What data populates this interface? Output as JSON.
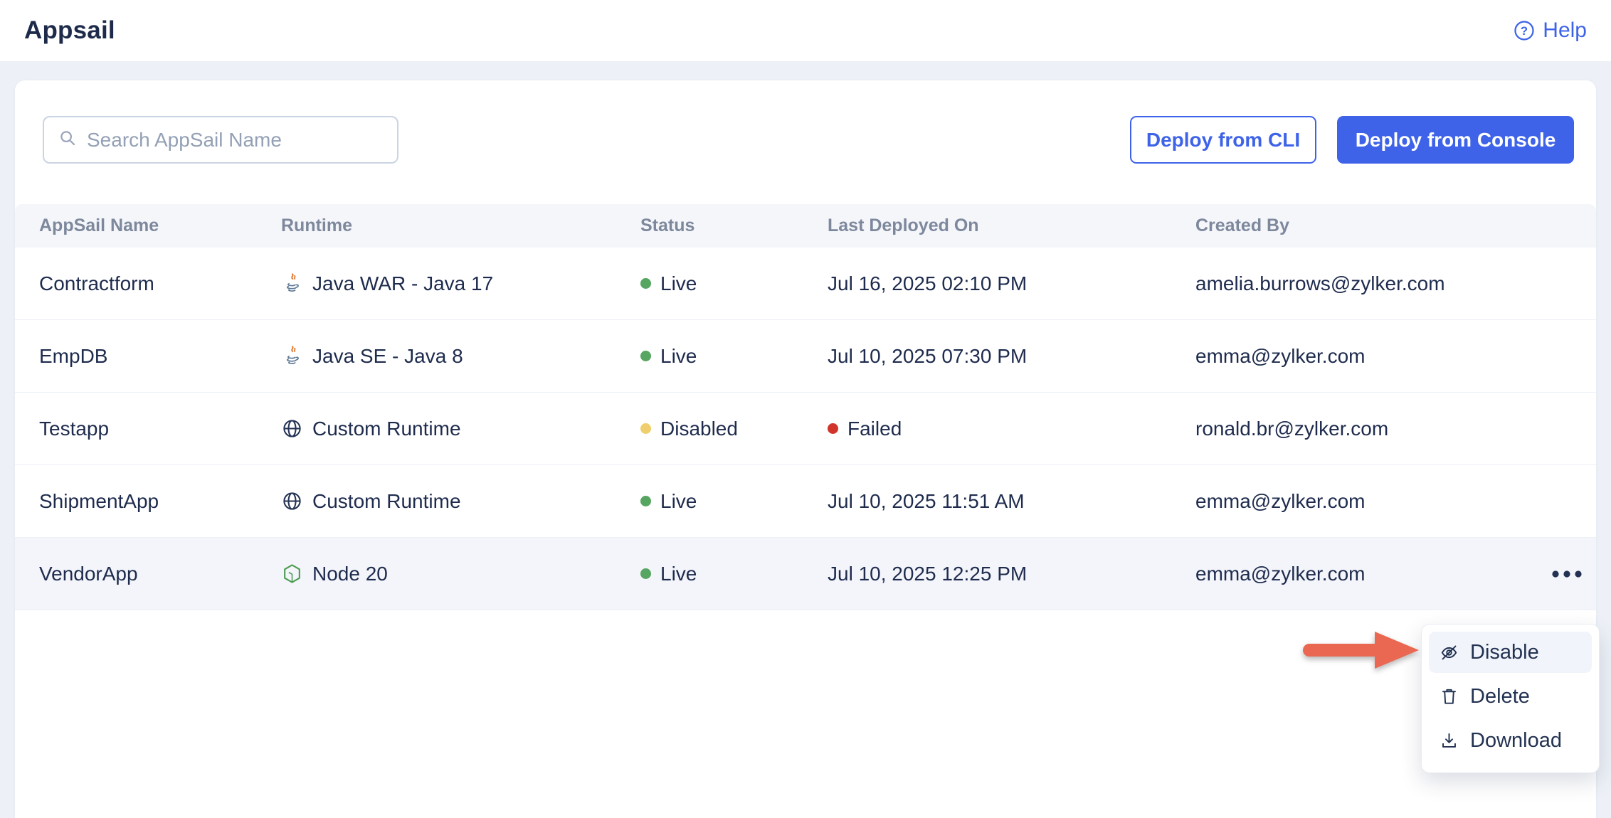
{
  "header": {
    "title": "Appsail",
    "help_label": "Help"
  },
  "toolbar": {
    "search_placeholder": "Search AppSail Name",
    "deploy_cli_label": "Deploy from CLI",
    "deploy_console_label": "Deploy from Console"
  },
  "table": {
    "columns": [
      "AppSail Name",
      "Runtime",
      "Status",
      "Last Deployed On",
      "Created By"
    ],
    "rows": [
      {
        "name": "Contractform",
        "runtime": {
          "icon": "java-icon",
          "label": "Java WAR - Java 17"
        },
        "status": {
          "label": "Live",
          "color": "#56A560"
        },
        "deployed": {
          "label": "Jul 16, 2025 02:10 PM",
          "dot": null
        },
        "created_by": "amelia.burrows@zylker.com",
        "highlighted": false,
        "show_more": false
      },
      {
        "name": "EmpDB",
        "runtime": {
          "icon": "java-icon",
          "label": "Java SE - Java 8"
        },
        "status": {
          "label": "Live",
          "color": "#56A560"
        },
        "deployed": {
          "label": "Jul 10, 2025 07:30 PM",
          "dot": null
        },
        "created_by": "emma@zylker.com",
        "highlighted": false,
        "show_more": false
      },
      {
        "name": "Testapp",
        "runtime": {
          "icon": "globe-icon",
          "label": "Custom Runtime"
        },
        "status": {
          "label": "Disabled",
          "color": "#F0CE6E"
        },
        "deployed": {
          "label": "Failed",
          "dot": "#D0342B"
        },
        "created_by": "ronald.br@zylker.com",
        "highlighted": false,
        "show_more": false
      },
      {
        "name": "ShipmentApp",
        "runtime": {
          "icon": "globe-icon",
          "label": "Custom Runtime"
        },
        "status": {
          "label": "Live",
          "color": "#56A560"
        },
        "deployed": {
          "label": "Jul 10, 2025 11:51 AM",
          "dot": null
        },
        "created_by": "emma@zylker.com",
        "highlighted": false,
        "show_more": false
      },
      {
        "name": "VendorApp",
        "runtime": {
          "icon": "node-icon",
          "label": "Node 20"
        },
        "status": {
          "label": "Live",
          "color": "#56A560"
        },
        "deployed": {
          "label": "Jul 10, 2025 12:25 PM",
          "dot": null
        },
        "created_by": "emma@zylker.com",
        "highlighted": true,
        "show_more": true
      }
    ]
  },
  "context_menu": {
    "items": [
      {
        "label": "Disable",
        "icon": "eye-off-icon",
        "highlighted": true
      },
      {
        "label": "Delete",
        "icon": "trash-icon",
        "highlighted": false
      },
      {
        "label": "Download",
        "icon": "download-icon",
        "highlighted": false
      }
    ]
  },
  "colors": {
    "accent": "#3E63E8",
    "title_text": "#1D2A4A",
    "body_text": "#1E2B4D",
    "header_text": "#7E889C",
    "page_bg": "#EDF1F7",
    "row_highlight": "#F3F5FA",
    "status_live": "#56A560",
    "status_disabled": "#F0CE6E",
    "status_failed": "#D0342B",
    "arrow": "#EA6852"
  }
}
